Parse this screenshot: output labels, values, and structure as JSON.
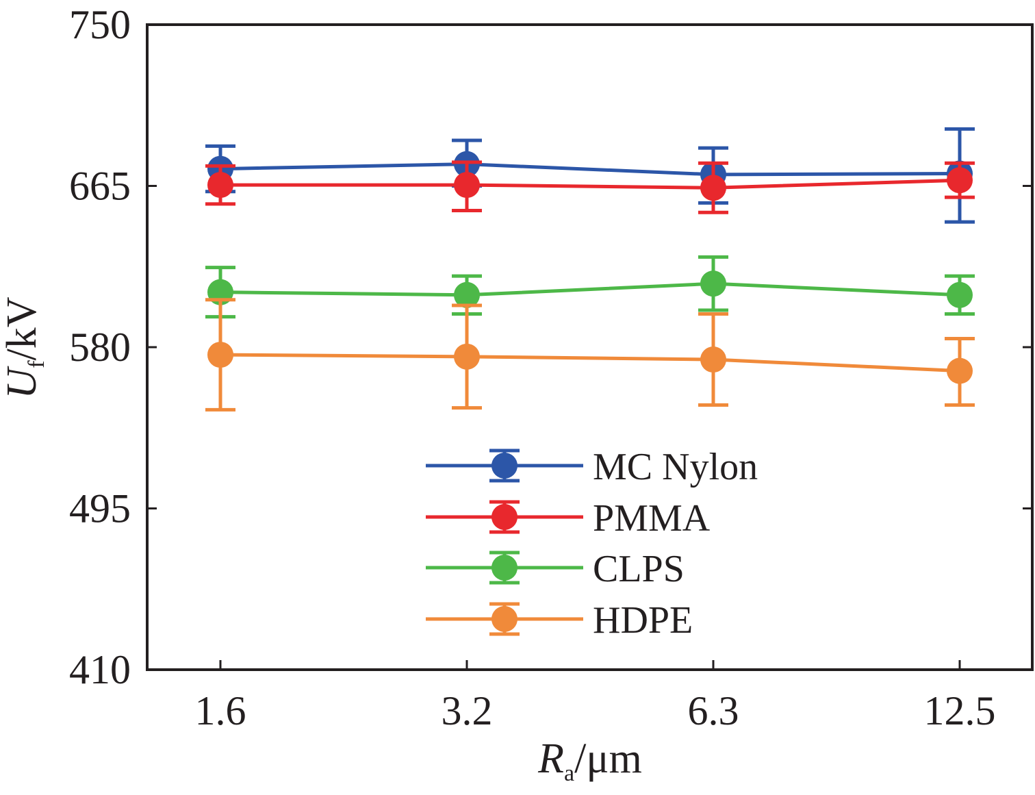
{
  "chart_data": {
    "type": "line",
    "title": "",
    "xlabel": {
      "symbol": "R",
      "subscript": "a",
      "unit": "/μm"
    },
    "ylabel": {
      "symbol": "U",
      "subscript": "f",
      "unit": "/kV"
    },
    "categories": [
      "1.6",
      "3.2",
      "6.3",
      "12.5"
    ],
    "yticks": [
      "410",
      "495",
      "580",
      "665",
      "750"
    ],
    "ylim": [
      410,
      750
    ],
    "grid": false,
    "legend_position": "lower-right",
    "error_bars": true,
    "series": [
      {
        "name": "MC Nylon",
        "color": "#2c56a8",
        "values": [
          674,
          676.5,
          671,
          671.5
        ],
        "err_low": [
          662,
          665,
          656,
          646
        ],
        "err_high": [
          686,
          689,
          685,
          695
        ]
      },
      {
        "name": "PMMA",
        "color": "#e8282d",
        "values": [
          665.5,
          665.5,
          664,
          668
        ],
        "err_low": [
          655.5,
          652,
          651,
          659
        ],
        "err_high": [
          675.5,
          677.5,
          677,
          677
        ]
      },
      {
        "name": "CLPS",
        "color": "#4db848",
        "values": [
          609,
          607.5,
          613.5,
          607.5
        ],
        "err_low": [
          596,
          597.5,
          599.5,
          597.5
        ],
        "err_high": [
          622,
          617.5,
          627.5,
          617.5
        ]
      },
      {
        "name": "HDPE",
        "color": "#f08a3a",
        "values": [
          576,
          575,
          573.5,
          567.5
        ],
        "err_low": [
          547,
          548,
          549.5,
          549.5
        ],
        "err_high": [
          605,
          602,
          597.5,
          584.5
        ]
      }
    ]
  }
}
